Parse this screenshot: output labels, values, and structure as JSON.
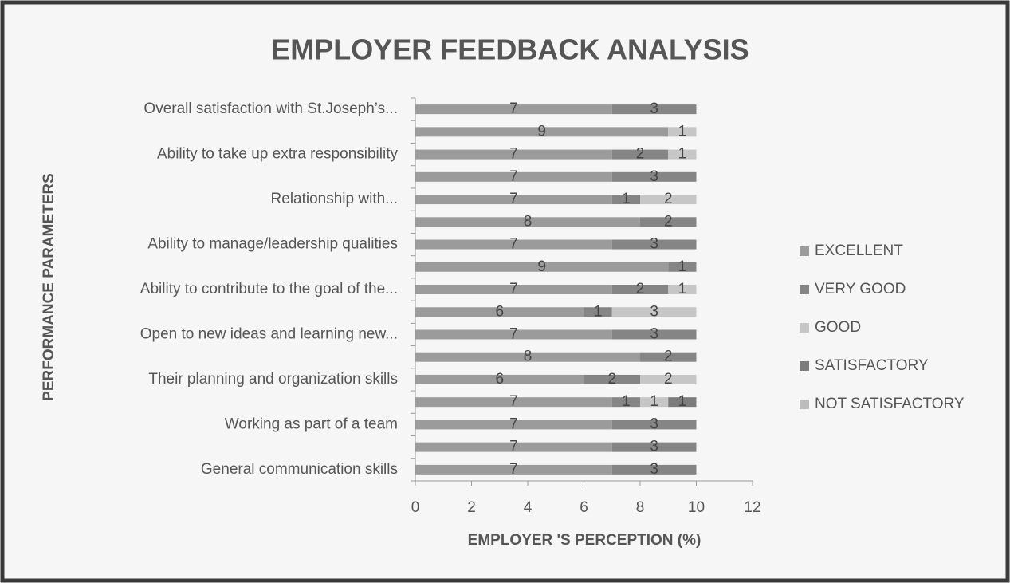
{
  "chart_data": {
    "type": "bar",
    "orientation": "horizontal",
    "stacked": true,
    "title": "EMPLOYER FEEDBACK ANALYSIS",
    "x_label": "EMPLOYER 'S PERCEPTION (%)",
    "y_label": "PERFORMANCE PARAMETERS",
    "categories": [
      "Overall satisfaction with St.Joseph’s...",
      null,
      "Ability to take up extra responsibility",
      null,
      "Relationship with...",
      null,
      "Ability to manage/leadership qualities",
      null,
      "Ability to contribute to the goal of the...",
      null,
      "Open to new ideas and learning new...",
      null,
      "Their planning and organization skills",
      null,
      "Working as part of a team",
      null,
      "General communication skills"
    ],
    "series": [
      {
        "name": "EXCELLENT",
        "color": "#9b9b9b",
        "values": [
          7,
          9,
          7,
          7,
          7,
          8,
          7,
          9,
          7,
          6,
          7,
          8,
          6,
          7,
          7,
          7,
          7
        ]
      },
      {
        "name": "VERY GOOD",
        "color": "#858585",
        "values": [
          3,
          null,
          2,
          3,
          1,
          2,
          3,
          1,
          2,
          1,
          3,
          2,
          2,
          1,
          3,
          3,
          3
        ]
      },
      {
        "name": "GOOD",
        "color": "#c6c6c6",
        "values": [
          null,
          1,
          1,
          null,
          2,
          null,
          null,
          null,
          1,
          3,
          null,
          null,
          2,
          1,
          null,
          null,
          null
        ]
      },
      {
        "name": "SATISFACTORY",
        "color": "#7c7c7c",
        "values": [
          null,
          null,
          null,
          null,
          null,
          null,
          null,
          null,
          null,
          null,
          null,
          null,
          null,
          1,
          null,
          null,
          null
        ]
      },
      {
        "name": "NOT SATISFACTORY",
        "color": "#bdbdbd",
        "values": [
          null,
          null,
          null,
          null,
          null,
          null,
          null,
          null,
          null,
          null,
          null,
          null,
          null,
          null,
          null,
          null,
          null
        ]
      }
    ],
    "xlim": [
      0,
      12
    ],
    "xticks": [
      0,
      2,
      4,
      6,
      8,
      10,
      12
    ],
    "legend": "right"
  }
}
